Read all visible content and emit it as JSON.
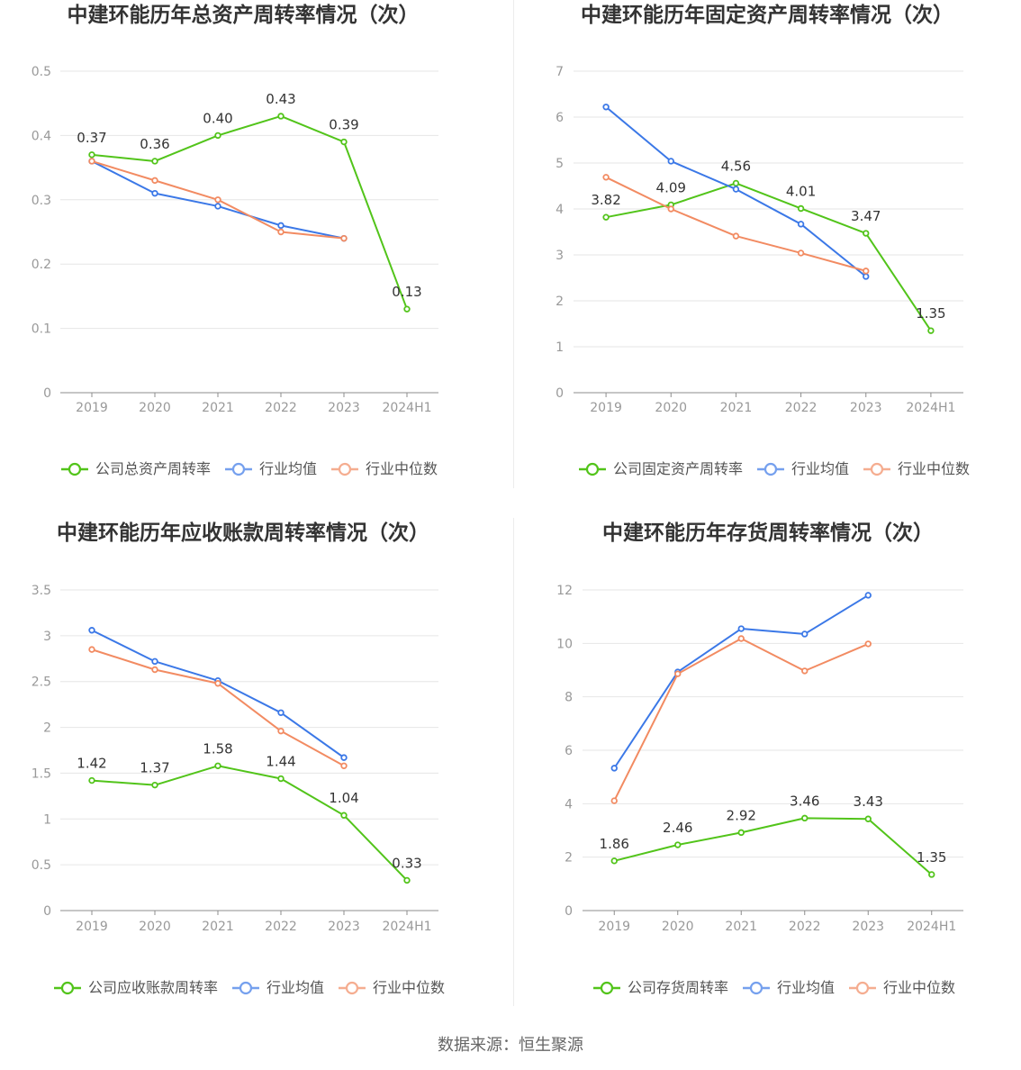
{
  "chart_data": [
    {
      "type": "line",
      "title": "中建环能历年总资产周转率情况（次）",
      "categories": [
        "2019",
        "2020",
        "2021",
        "2022",
        "2023",
        "2024H1"
      ],
      "ylim": [
        0,
        0.5
      ],
      "yticks": [
        "0",
        "0.1",
        "0.2",
        "0.3",
        "0.4",
        "0.5"
      ],
      "grid": true,
      "legend_position": "bottom",
      "series": [
        {
          "name": "公司总资产周转率",
          "color": "#52c41a",
          "data_labels": true,
          "values": [
            0.37,
            0.36,
            0.4,
            0.43,
            0.39,
            0.13
          ]
        },
        {
          "name": "行业均值",
          "color": "#3b78e7",
          "values": [
            0.36,
            0.31,
            0.29,
            0.26,
            0.24,
            null
          ]
        },
        {
          "name": "行业中位数",
          "color": "#f28b62",
          "values": [
            0.36,
            0.33,
            0.3,
            0.25,
            0.24,
            null
          ]
        }
      ]
    },
    {
      "type": "line",
      "title": "中建环能历年固定资产周转率情况（次）",
      "categories": [
        "2019",
        "2020",
        "2021",
        "2022",
        "2023",
        "2024H1"
      ],
      "ylim": [
        0,
        7
      ],
      "yticks": [
        "0",
        "1",
        "2",
        "3",
        "4",
        "5",
        "6",
        "7"
      ],
      "grid": true,
      "legend_position": "bottom",
      "series": [
        {
          "name": "公司固定资产周转率",
          "color": "#52c41a",
          "data_labels": true,
          "values": [
            3.82,
            4.09,
            4.56,
            4.01,
            3.47,
            1.35
          ]
        },
        {
          "name": "行业均值",
          "color": "#3b78e7",
          "values": [
            6.22,
            5.04,
            4.43,
            3.67,
            2.53,
            null
          ]
        },
        {
          "name": "行业中位数",
          "color": "#f28b62",
          "values": [
            4.69,
            4.0,
            3.41,
            3.04,
            2.65,
            null
          ]
        }
      ]
    },
    {
      "type": "line",
      "title": "中建环能历年应收账款周转率情况（次）",
      "categories": [
        "2019",
        "2020",
        "2021",
        "2022",
        "2023",
        "2024H1"
      ],
      "ylim": [
        0,
        3.5
      ],
      "yticks": [
        "0",
        "0.5",
        "1",
        "1.5",
        "2",
        "2.5",
        "3",
        "3.5"
      ],
      "grid": true,
      "legend_position": "bottom",
      "series": [
        {
          "name": "公司应收账款周转率",
          "color": "#52c41a",
          "data_labels": true,
          "values": [
            1.42,
            1.37,
            1.58,
            1.44,
            1.04,
            0.33
          ]
        },
        {
          "name": "行业均值",
          "color": "#3b78e7",
          "values": [
            3.06,
            2.72,
            2.51,
            2.16,
            1.67,
            null
          ]
        },
        {
          "name": "行业中位数",
          "color": "#f28b62",
          "values": [
            2.85,
            2.63,
            2.48,
            1.96,
            1.58,
            null
          ]
        }
      ]
    },
    {
      "type": "line",
      "title": "中建环能历年存货周转率情况（次）",
      "categories": [
        "2019",
        "2020",
        "2021",
        "2022",
        "2023",
        "2024H1"
      ],
      "ylim": [
        0,
        12
      ],
      "yticks": [
        "0",
        "2",
        "4",
        "6",
        "8",
        "10",
        "12"
      ],
      "grid": true,
      "legend_position": "bottom",
      "series": [
        {
          "name": "公司存货周转率",
          "color": "#52c41a",
          "data_labels": true,
          "values": [
            1.86,
            2.46,
            2.92,
            3.46,
            3.43,
            1.35
          ]
        },
        {
          "name": "行业均值",
          "color": "#3b78e7",
          "values": [
            5.33,
            8.93,
            10.55,
            10.35,
            11.8,
            null
          ]
        },
        {
          "name": "行业中位数",
          "color": "#f28b62",
          "values": [
            4.11,
            8.86,
            10.18,
            8.97,
            9.98,
            null
          ]
        }
      ]
    }
  ],
  "footer": {
    "source": "数据来源：恒生聚源"
  }
}
